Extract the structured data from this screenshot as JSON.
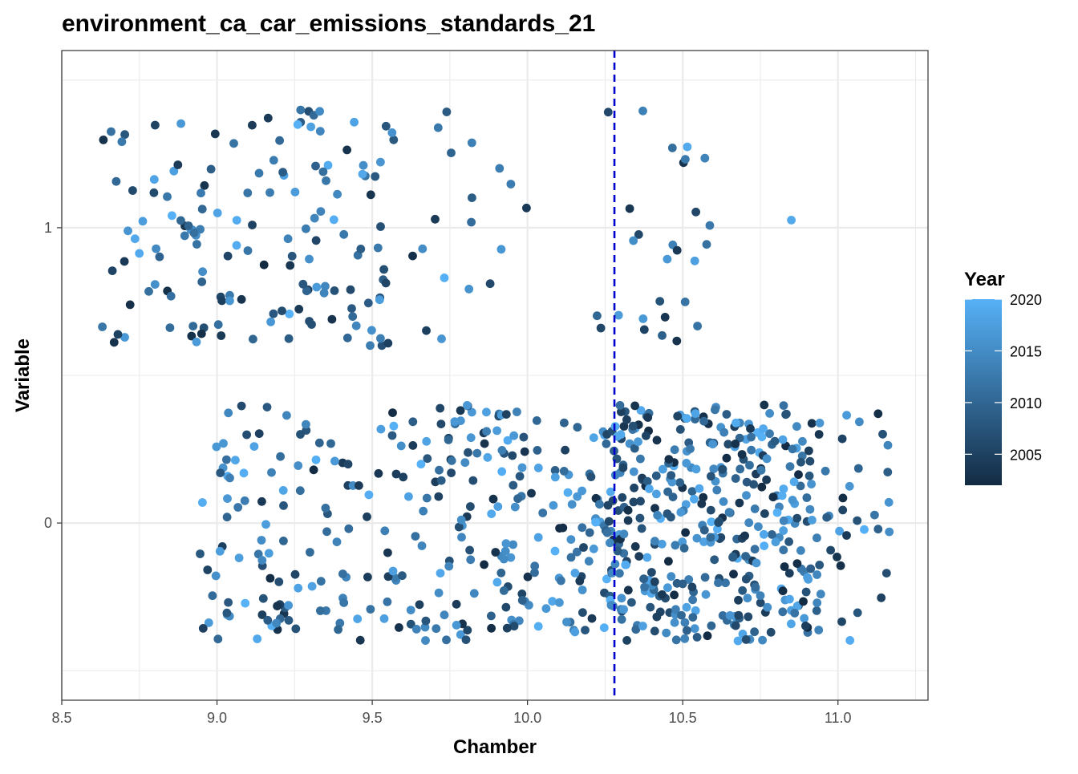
{
  "chart_data": {
    "type": "scatter",
    "title": "environment_ca_car_emissions_standards_21",
    "xlabel": "Chamber",
    "ylabel": "Variable",
    "xlim": [
      8.5,
      11.29
    ],
    "ylim": [
      -0.6,
      1.6
    ],
    "x_ticks": [
      8.5,
      9.0,
      9.5,
      10.0,
      10.5,
      11.0
    ],
    "x_tick_labels": [
      "8.5",
      "9.0",
      "9.5",
      "10.0",
      "10.5",
      "11.0"
    ],
    "y_ticks": [
      0,
      1
    ],
    "y_tick_labels": [
      "0",
      "1"
    ],
    "grid": true,
    "reference_line": {
      "orientation": "vertical",
      "x": 10.28,
      "style": "dashed",
      "color": "#0000cc"
    },
    "legend": {
      "title": "Year",
      "type": "colorbar",
      "placement": "right",
      "min": 2002,
      "max": 2020,
      "ticks": [
        2005,
        2010,
        2015,
        2020
      ],
      "tick_labels": [
        "2005",
        "2010",
        "2015",
        "2020"
      ],
      "color_low": "#132B43",
      "color_high": "#56B1F7"
    },
    "groups": [
      {
        "y_center": 1,
        "jitter": 0.4,
        "x_clusters": [
          {
            "min": 8.63,
            "max": 9.57,
            "n": 150
          },
          {
            "min": 9.57,
            "max": 10.02,
            "n": 18
          },
          {
            "min": 10.22,
            "max": 10.62,
            "n": 28
          },
          {
            "min": 10.83,
            "max": 10.85,
            "n": 1
          }
        ]
      },
      {
        "y_center": 0,
        "jitter": 0.4,
        "x_clusters": [
          {
            "min": 8.94,
            "max": 9.55,
            "n": 110
          },
          {
            "min": 9.55,
            "max": 10.25,
            "n": 190
          },
          {
            "min": 10.25,
            "max": 10.95,
            "n": 390
          },
          {
            "min": 10.95,
            "max": 11.17,
            "n": 30
          }
        ]
      }
    ]
  }
}
